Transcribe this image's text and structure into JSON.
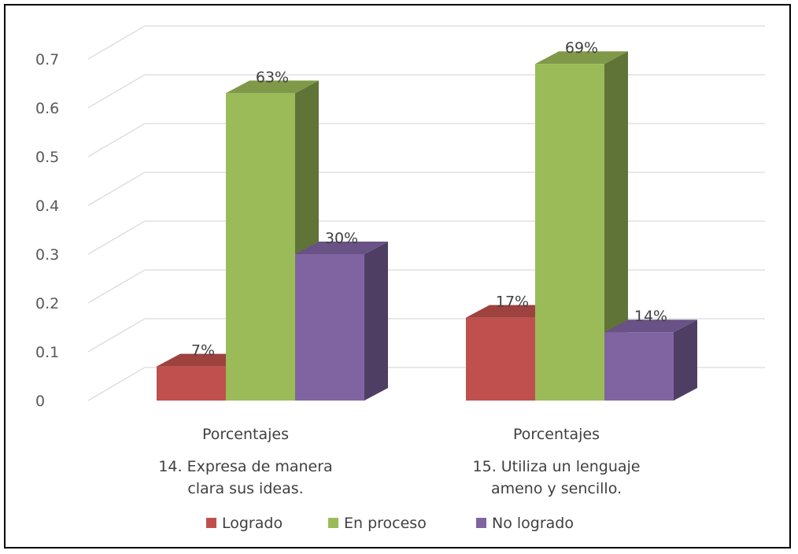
{
  "chart_data": {
    "type": "bar",
    "style": "3d-clustered-column",
    "title": "",
    "xlabel": "",
    "ylabel": "",
    "ylim": [
      0,
      0.7
    ],
    "yticks": [
      0,
      0.1,
      0.2,
      0.3,
      0.4,
      0.5,
      0.6,
      0.7
    ],
    "ytick_labels": [
      "0",
      "0.1",
      "0.2",
      "0.3",
      "0.4",
      "0.5",
      "0.6",
      "0.7"
    ],
    "grid": true,
    "legend_position": "bottom",
    "categories": [
      {
        "group": "Porcentajes",
        "line1": "14. Expresa de manera",
        "line2": "clara sus ideas."
      },
      {
        "group": "Porcentajes",
        "line1": "15. Utiliza un lenguaje",
        "line2": "ameno y sencillo."
      }
    ],
    "series": [
      {
        "name": "Logrado",
        "color": "#C0504D",
        "values": [
          0.07,
          0.17
        ],
        "labels": [
          "7%",
          "17%"
        ]
      },
      {
        "name": "En proceso",
        "color": "#9BBB59",
        "values": [
          0.63,
          0.69
        ],
        "labels": [
          "63%",
          "69%"
        ]
      },
      {
        "name": "No logrado",
        "color": "#8064A2",
        "values": [
          0.3,
          0.14
        ],
        "labels": [
          "30%",
          "14%"
        ]
      }
    ]
  }
}
